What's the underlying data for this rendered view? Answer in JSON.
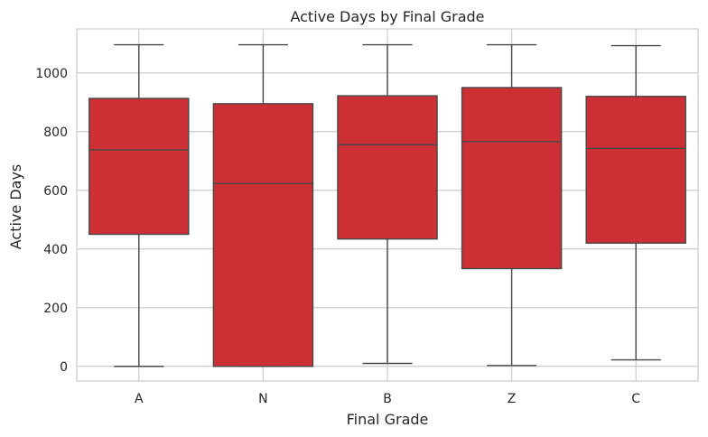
{
  "chart_data": {
    "type": "box",
    "title": "Active Days by Final Grade",
    "xlabel": "Final Grade",
    "ylabel": "Active Days",
    "categories": [
      "A",
      "N",
      "B",
      "Z",
      "C"
    ],
    "boxes": [
      {
        "category": "A",
        "min": 0,
        "q1": 450,
        "median": 738,
        "q3": 913,
        "max": 1096
      },
      {
        "category": "N",
        "min": 0,
        "q1": 0,
        "median": 623,
        "q3": 895,
        "max": 1096
      },
      {
        "category": "B",
        "min": 10,
        "q1": 434,
        "median": 755,
        "q3": 922,
        "max": 1096
      },
      {
        "category": "Z",
        "min": 3,
        "q1": 333,
        "median": 766,
        "q3": 950,
        "max": 1096
      },
      {
        "category": "C",
        "min": 22,
        "q1": 420,
        "median": 743,
        "q3": 920,
        "max": 1093
      }
    ],
    "yticks": [
      0,
      200,
      400,
      600,
      800,
      1000
    ],
    "ylim": [
      -50,
      1150
    ],
    "grid": true,
    "colors": {
      "box_fill": "#cd3034",
      "line": "#474747",
      "grid": "#cccccc",
      "spine": "#cccccc"
    }
  }
}
